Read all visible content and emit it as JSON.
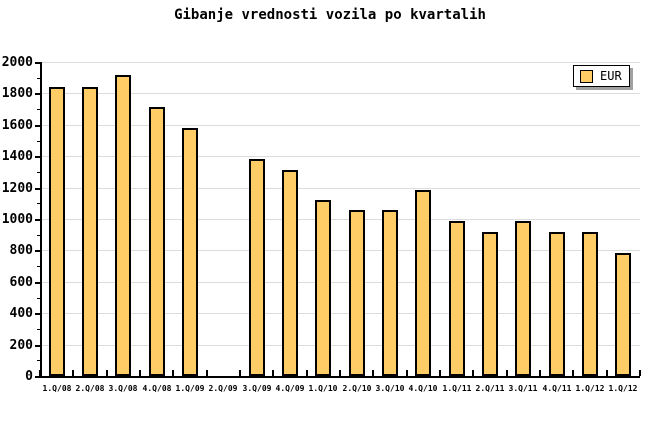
{
  "page": {
    "background": "#ffffff"
  },
  "chart_data": {
    "type": "bar",
    "title": "Gibanje vrednosti vozila po kvartalih",
    "categories": [
      "1.Q/08",
      "2.Q/08",
      "3.Q/08",
      "4.Q/08",
      "1.Q/09",
      "2.Q/09",
      "3.Q/09",
      "4.Q/09",
      "1.Q/10",
      "2.Q/10",
      "3.Q/10",
      "4.Q/10",
      "1.Q/11",
      "2.Q/11",
      "3.Q/11",
      "4.Q/11",
      "1.Q/12",
      "1.Q/12"
    ],
    "series": [
      {
        "name": "EUR",
        "values": [
          1840,
          1840,
          1915,
          1715,
          1580,
          null,
          1385,
          1315,
          1120,
          1055,
          1055,
          1185,
          985,
          915,
          985,
          915,
          915,
          785
        ]
      }
    ],
    "xlabel": "",
    "ylabel": "",
    "ylim": [
      0,
      2000
    ],
    "y_tick_interval": 200,
    "y_minor_tick_interval": 100,
    "y_tick_labels": [
      "0",
      "200",
      "400",
      "600",
      "800",
      "1000",
      "1200",
      "1400",
      "1600",
      "1800",
      "2000"
    ],
    "grid": "horizontal-major",
    "legend_position": "top-right",
    "colors": {
      "bar_fill": "#FFCC66",
      "bar_border": "#000000",
      "gridline": "#dcdcdc",
      "axis": "#000000",
      "legend_shadow": "#a0a0a0",
      "background": "#ffffff"
    }
  }
}
